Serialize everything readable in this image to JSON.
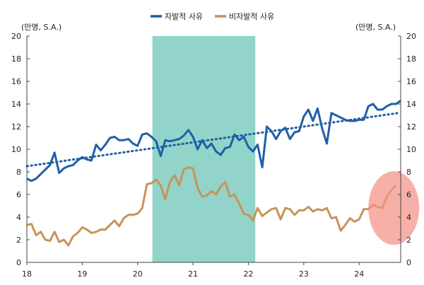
{
  "chart_data": {
    "type": "line",
    "title": "",
    "legend": [
      {
        "name": "자발적 사유",
        "color": "#1f5fa8"
      },
      {
        "name": "비자발적 사유",
        "color": "#c8935a"
      }
    ],
    "y_unit_left": "(만명, S.A.)",
    "y_unit_right": "(만명, S.A.)",
    "ylim": [
      0,
      20
    ],
    "yticks": [
      "0",
      "2",
      "4",
      "6",
      "8",
      "10",
      "12",
      "14",
      "16",
      "18",
      "20"
    ],
    "xticks": [
      "18",
      "19",
      "20",
      "21",
      "22",
      "23",
      "24"
    ],
    "xlim": [
      0,
      81
    ],
    "shaded_period": {
      "start": 27.2,
      "end": 49.5,
      "color": "#92d4c9"
    },
    "highlight_circle": {
      "cx": 79.5,
      "cy": 4.8,
      "color": "#f49186"
    },
    "trend": {
      "series": "자발적 사유",
      "start": [
        0,
        8.5
      ],
      "end": [
        80.5,
        13.2
      ],
      "color": "#1f5fa8"
    },
    "series": [
      {
        "name": "자발적 사유",
        "color": "#1f5fa8",
        "values": [
          7.4,
          7.2,
          7.4,
          7.8,
          8.2,
          8.6,
          9.7,
          7.9,
          8.3,
          8.5,
          8.6,
          9.0,
          9.3,
          9.1,
          9.0,
          10.4,
          9.9,
          10.4,
          11.0,
          11.1,
          10.8,
          10.8,
          10.9,
          10.5,
          10.3,
          11.3,
          11.4,
          11.1,
          10.7,
          9.4,
          10.8,
          10.7,
          10.8,
          10.9,
          11.2,
          11.7,
          11.1,
          10.0,
          10.8,
          10.1,
          10.5,
          9.8,
          9.5,
          10.1,
          10.2,
          11.3,
          10.8,
          11.1,
          10.2,
          9.8,
          10.4,
          8.4,
          12.0,
          11.6,
          10.9,
          11.6,
          11.9,
          10.9,
          11.5,
          11.6,
          12.9,
          13.5,
          12.5,
          13.6,
          11.8,
          10.5,
          13.2,
          13.0,
          12.8,
          12.6,
          12.5,
          12.5,
          12.6,
          12.6,
          13.8,
          14.0,
          13.5,
          13.5,
          13.8,
          14.0,
          14.0,
          14.3
        ],
        "x_start": 0
      },
      {
        "name": "비자발적 사유",
        "color": "#c8935a",
        "values": [
          3.3,
          3.4,
          2.4,
          2.7,
          2.0,
          1.9,
          2.7,
          1.8,
          2.0,
          1.5,
          2.3,
          2.6,
          3.1,
          2.9,
          2.6,
          2.7,
          2.9,
          2.9,
          3.3,
          3.7,
          3.2,
          3.9,
          4.2,
          4.2,
          4.3,
          4.8,
          6.9,
          7.0,
          7.3,
          6.8,
          5.6,
          7.1,
          7.7,
          6.8,
          8.2,
          8.4,
          8.3,
          6.6,
          5.8,
          5.9,
          6.3,
          6.0,
          6.7,
          7.1,
          5.8,
          6.0,
          5.2,
          4.3,
          4.2,
          3.7,
          4.8,
          4.1,
          4.4,
          4.7,
          4.8,
          3.8,
          4.8,
          4.7,
          4.2,
          4.6,
          4.6,
          4.9,
          4.5,
          4.7,
          4.6,
          4.8,
          3.9,
          4.0,
          2.8,
          3.3,
          3.9,
          3.6,
          3.8,
          4.7,
          4.7,
          5.1,
          4.9,
          4.8,
          5.8,
          6.4,
          6.8
        ],
        "x_start": 0
      }
    ]
  }
}
